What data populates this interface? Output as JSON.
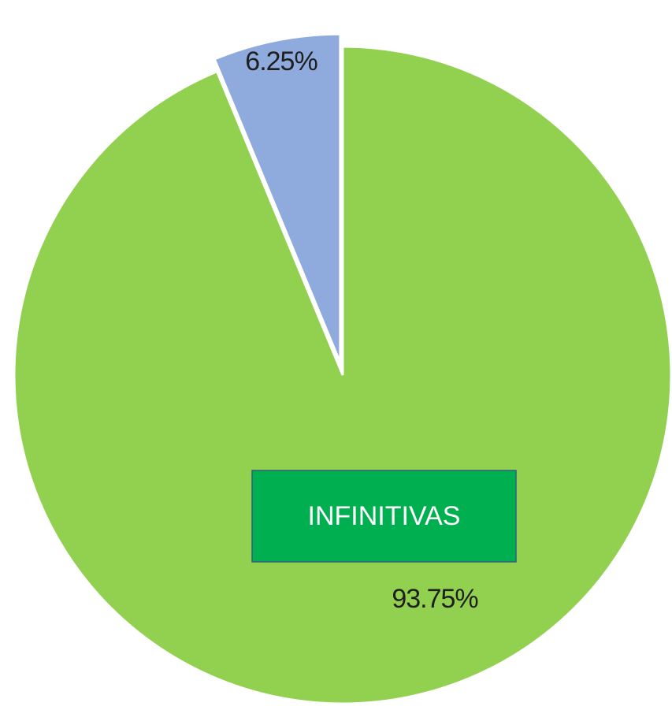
{
  "chart_data": {
    "type": "pie",
    "categories": [
      "INFINITIVAS",
      null
    ],
    "values": [
      93.75,
      6.25
    ],
    "value_labels": [
      "93.75%",
      "6.25%"
    ],
    "colors": [
      "#92d050",
      "#8faadc"
    ]
  }
}
